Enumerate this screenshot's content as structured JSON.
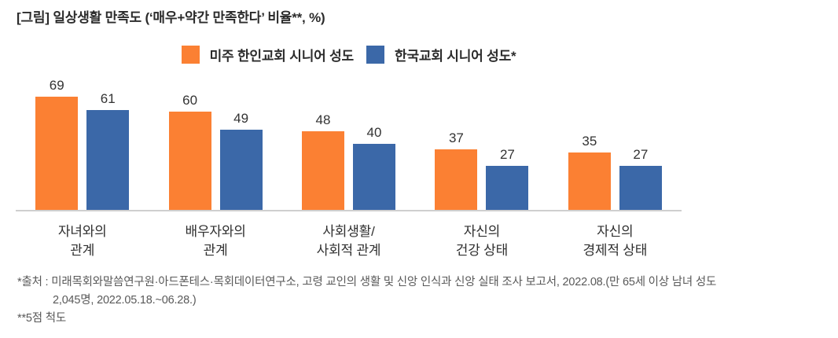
{
  "title": "[그림] 일상생활 만족도 (‘매우+약간 만족한다’ 비율**, %)",
  "footnotes": {
    "source": "*출처 : 미래목회와말씀연구원·아드폰테스·목회데이터연구소, 고령 교인의 생활 및 신앙 인식과 신앙 실태 조사 보고서, 2022.08.(만 65세 이상 남녀 성도\n2,045명, 2022.05.18.~06.28.)",
    "scale": "**5점 척도"
  },
  "chart_data": {
    "type": "bar",
    "title": "[그림] 일상생활 만족도 (‘매우+약간 만족한다’ 비율**, %)",
    "categories": [
      "자녀와의\n관계",
      "배우자와의\n관계",
      "사회생활/\n사회적 관계",
      "자신의\n건강 상태",
      "자신의\n경제적 상태"
    ],
    "series": [
      {
        "name": "미주 한인교회 시니어 성도",
        "color": "#FB8033",
        "values": [
          69,
          60,
          48,
          37,
          35
        ]
      },
      {
        "name": "한국교회 시니어 성도*",
        "color": "#3B68A8",
        "values": [
          61,
          49,
          40,
          27,
          27
        ]
      }
    ],
    "ylim": [
      0,
      75
    ],
    "value_labels": true,
    "legend_position": "top",
    "grid": false,
    "axis_color": "#CFCFCF"
  }
}
